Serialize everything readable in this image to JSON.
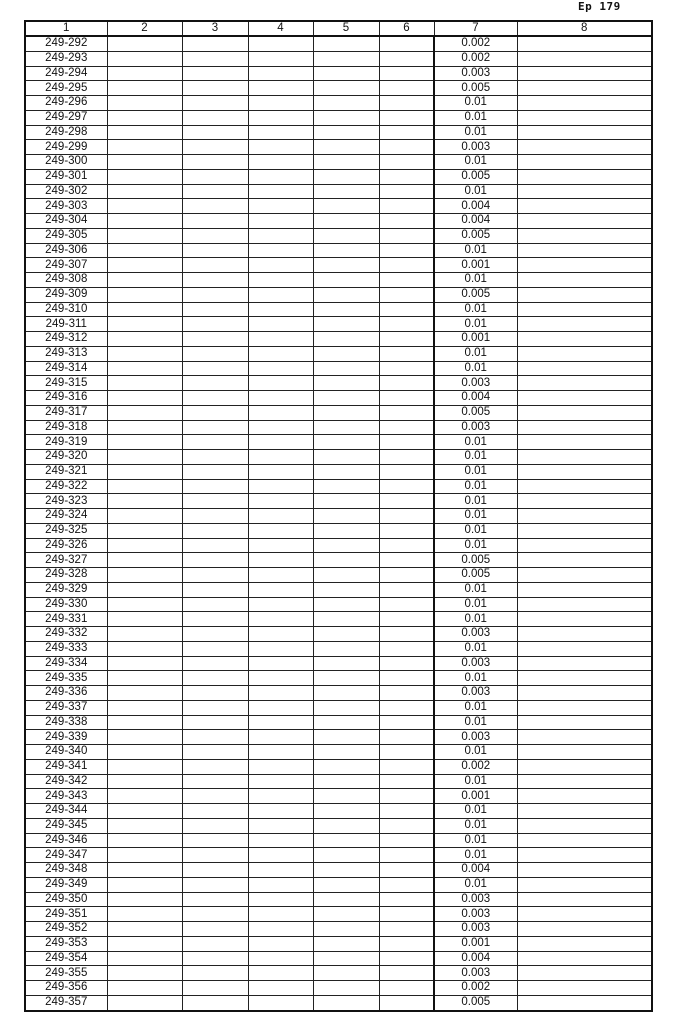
{
  "page_number": "Ep 179",
  "table": {
    "headers": [
      "1",
      "2",
      "3",
      "4",
      "5",
      "6",
      "7",
      "8"
    ],
    "rows": [
      [
        "249-292",
        "0.002"
      ],
      [
        "249-293",
        "0.002"
      ],
      [
        "249-294",
        "0.003"
      ],
      [
        "249-295",
        "0.005"
      ],
      [
        "249-296",
        "0.01"
      ],
      [
        "249-297",
        "0.01"
      ],
      [
        "249-298",
        "0.01"
      ],
      [
        "249-299",
        "0.003"
      ],
      [
        "249-300",
        "0.01"
      ],
      [
        "249-301",
        "0.005"
      ],
      [
        "249-302",
        "0.01"
      ],
      [
        "249-303",
        "0.004"
      ],
      [
        "249-304",
        "0.004"
      ],
      [
        "249-305",
        "0.005"
      ],
      [
        "249-306",
        "0.01"
      ],
      [
        "249-307",
        "0.001"
      ],
      [
        "249-308",
        "0.01"
      ],
      [
        "249-309",
        "0.005"
      ],
      [
        "249-310",
        "0.01"
      ],
      [
        "249-311",
        "0.01"
      ],
      [
        "249-312",
        "0.001"
      ],
      [
        "249-313",
        "0.01"
      ],
      [
        "249-314",
        "0.01"
      ],
      [
        "249-315",
        "0.003"
      ],
      [
        "249-316",
        "0.004"
      ],
      [
        "249-317",
        "0.005"
      ],
      [
        "249-318",
        "0.003"
      ],
      [
        "249-319",
        "0.01"
      ],
      [
        "249-320",
        "0.01"
      ],
      [
        "249-321",
        "0.01"
      ],
      [
        "249-322",
        "0.01"
      ],
      [
        "249-323",
        "0.01"
      ],
      [
        "249-324",
        "0.01"
      ],
      [
        "249-325",
        "0.01"
      ],
      [
        "249-326",
        "0.01"
      ],
      [
        "249-327",
        "0.005"
      ],
      [
        "249-328",
        "0.005"
      ],
      [
        "249-329",
        "0.01"
      ],
      [
        "249-330",
        "0.01"
      ],
      [
        "249-331",
        "0.01"
      ],
      [
        "249-332",
        "0.003"
      ],
      [
        "249-333",
        "0.01"
      ],
      [
        "249-334",
        "0.003"
      ],
      [
        "249-335",
        "0.01"
      ],
      [
        "249-336",
        "0.003"
      ],
      [
        "249-337",
        "0.01"
      ],
      [
        "249-338",
        "0.01"
      ],
      [
        "249-339",
        "0.003"
      ],
      [
        "249-340",
        "0.01"
      ],
      [
        "249-341",
        "0.002"
      ],
      [
        "249-342",
        "0.01"
      ],
      [
        "249-343",
        "0.001"
      ],
      [
        "249-344",
        "0.01"
      ],
      [
        "249-345",
        "0.01"
      ],
      [
        "249-346",
        "0.01"
      ],
      [
        "249-347",
        "0.01"
      ],
      [
        "249-348",
        "0.004"
      ],
      [
        "249-349",
        "0.01"
      ],
      [
        "249-350",
        "0.003"
      ],
      [
        "249-351",
        "0.003"
      ],
      [
        "249-352",
        "0.003"
      ],
      [
        "249-353",
        "0.001"
      ],
      [
        "249-354",
        "0.004"
      ],
      [
        "249-355",
        "0.003"
      ],
      [
        "249-356",
        "0.002"
      ],
      [
        "249-357",
        "0.005"
      ]
    ]
  }
}
